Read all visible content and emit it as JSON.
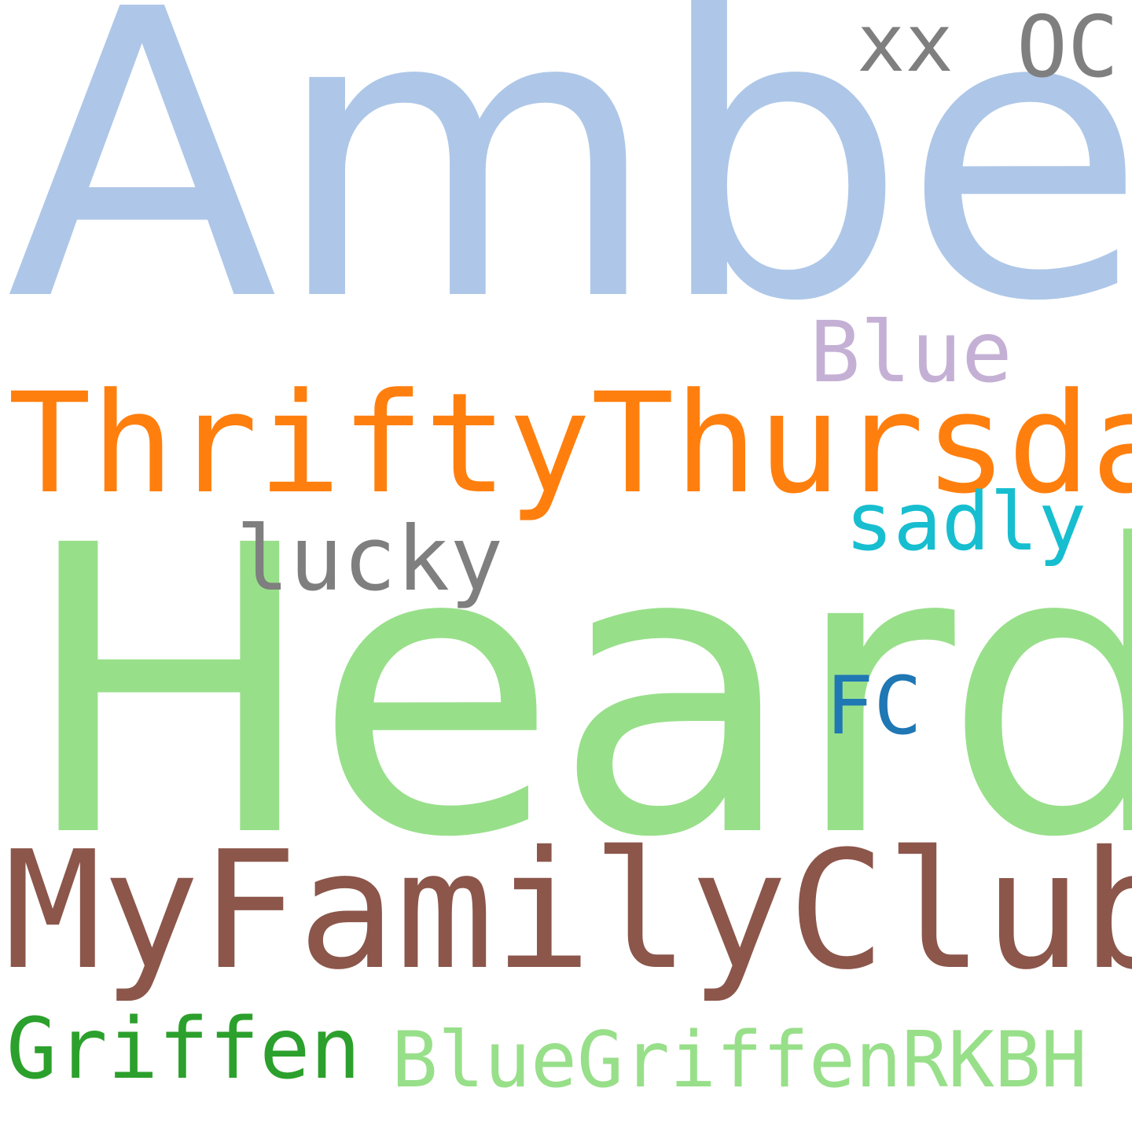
{
  "words": [
    {
      "id": "amber",
      "text": "Amber",
      "color": "#aec7e8"
    },
    {
      "id": "heard",
      "text": "Heard",
      "color": "#98df8a"
    },
    {
      "id": "thriftythursday",
      "text": "ThriftyThursday",
      "color": "#ff7f0e"
    },
    {
      "id": "myfamilyclub",
      "text": "MyFamilyClub",
      "color": "#8c564b"
    },
    {
      "id": "bluegriffenrkbh",
      "text": "BlueGriffenRKBH",
      "color": "#98df8a"
    },
    {
      "id": "griffen",
      "text": "Griffen",
      "color": "#2ca02c"
    },
    {
      "id": "lucky",
      "text": "lucky",
      "color": "#7f7f7f"
    },
    {
      "id": "sadly",
      "text": "sadly",
      "color": "#17becf"
    },
    {
      "id": "blue",
      "text": "Blue",
      "color": "#c5b0d5"
    },
    {
      "id": "fc",
      "text": "FC",
      "color": "#1f77b4"
    },
    {
      "id": "xx",
      "text": "xx",
      "color": "#7f7f7f"
    },
    {
      "id": "oc",
      "text": "OC",
      "color": "#7f7f7f"
    }
  ]
}
